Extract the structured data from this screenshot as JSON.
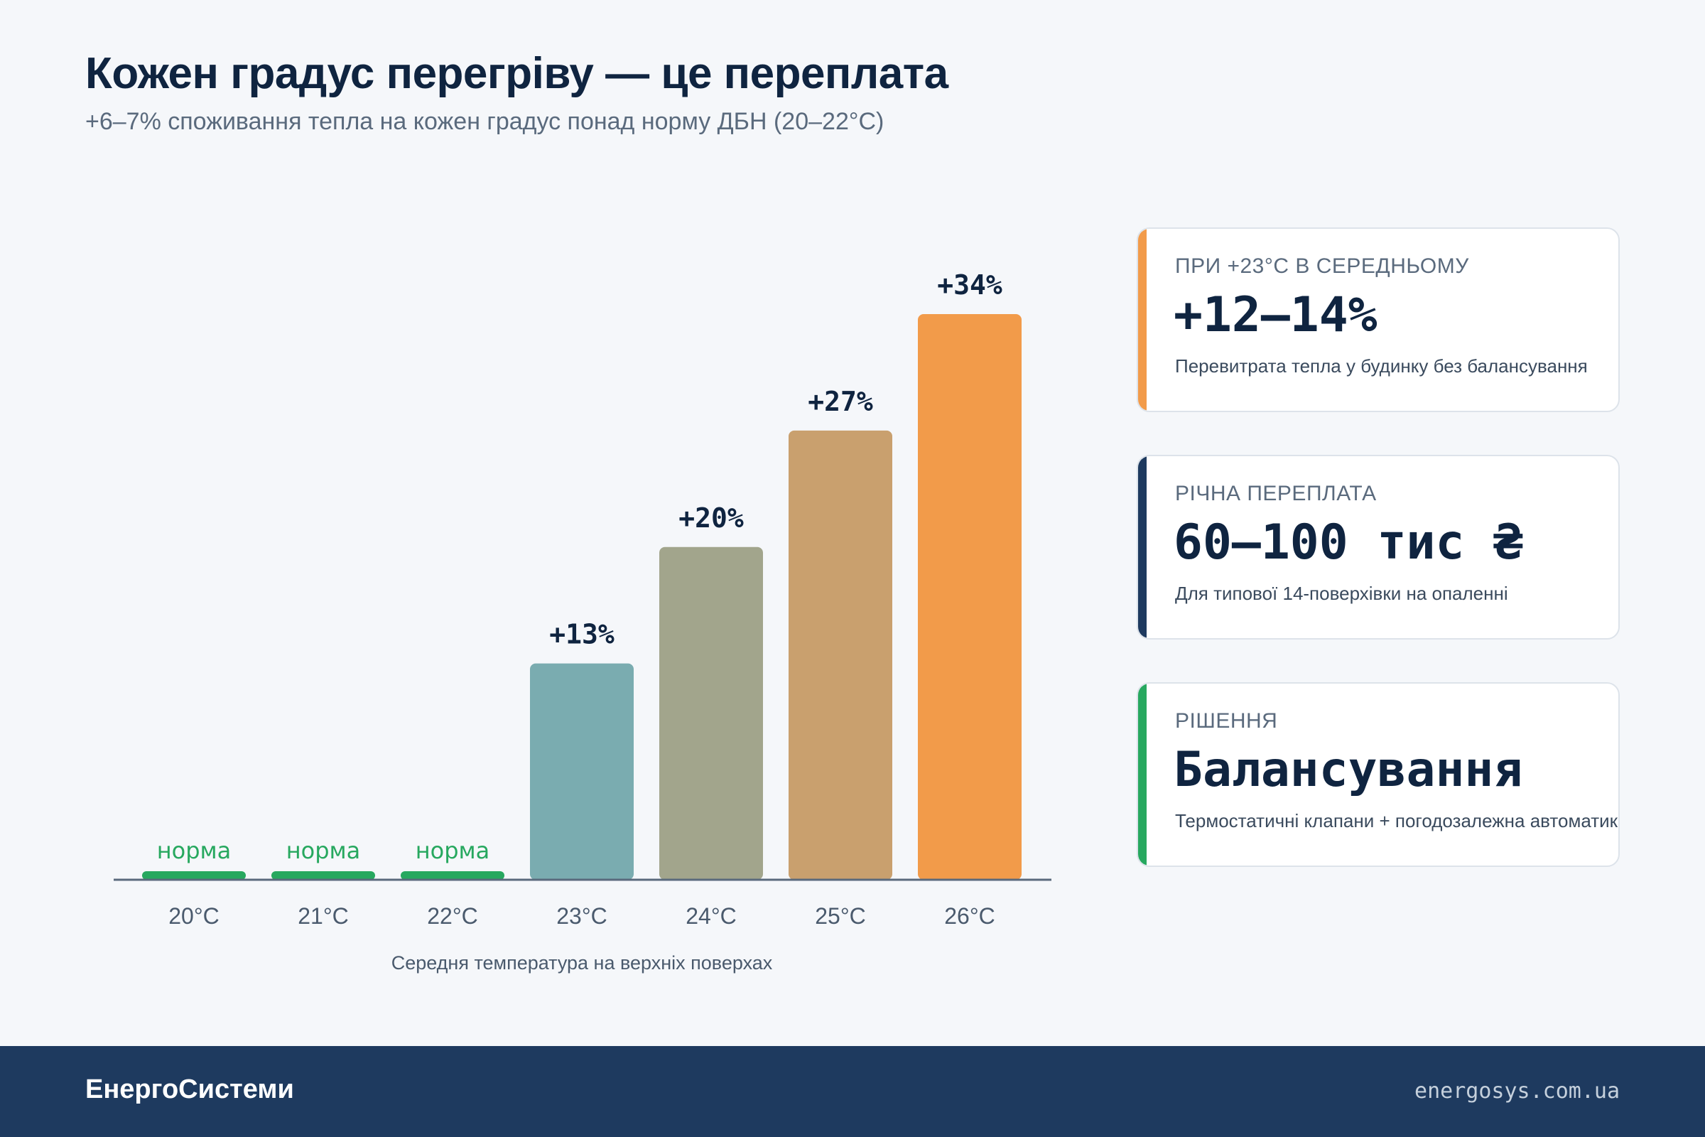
{
  "header": {
    "title": "Кожен градус перегріву — це переплата",
    "subtitle": "+6–7% споживання тепла на кожен градус понад норму ДБН (20–22°C)"
  },
  "chart_data": {
    "type": "bar",
    "categories": [
      "20°C",
      "21°C",
      "22°C",
      "23°C",
      "24°C",
      "25°C",
      "26°C"
    ],
    "values": [
      0,
      0,
      0,
      13,
      20,
      27,
      34
    ],
    "data_labels": [
      "норма",
      "норма",
      "норма",
      "+13%",
      "+20%",
      "+27%",
      "+34%"
    ],
    "colors": [
      "#27a85f",
      "#27a85f",
      "#27a85f",
      "#7aacb0",
      "#a2a58c",
      "#c9a06e",
      "#f29b4a"
    ],
    "xlabel": "Середня температура на верхніх поверхах",
    "ylim": [
      0,
      34
    ]
  },
  "cards": [
    {
      "label": "ПРИ +23°C В СЕРЕДНЬОМУ",
      "value": "+12–14%",
      "desc": "Перевитрата тепла у будинку без балансування",
      "accent": "#f29b4a"
    },
    {
      "label": "РІЧНА ПЕРЕПЛАТА",
      "value": "60–100 тис ₴",
      "desc": "Для типової 14-поверхівки на опаленні",
      "accent": "#1e3a5f"
    },
    {
      "label": "РІШЕННЯ",
      "value": "Балансування",
      "desc": "Термостатичні клапани + погодозалежна автоматика",
      "accent": "#27a85f"
    }
  ],
  "footer": {
    "brand": "ЕнергоСистеми",
    "site": "energosys.com.ua"
  }
}
